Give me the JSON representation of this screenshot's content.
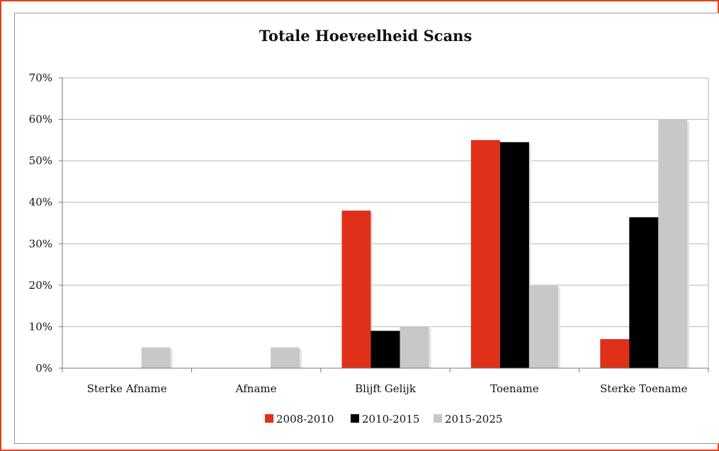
{
  "chart_data": {
    "type": "bar",
    "title": "Totale Hoeveelheid Scans",
    "xlabel": "",
    "ylabel": "",
    "categories": [
      "Sterke Afname",
      "Afname",
      "Blijft Gelijk",
      "Toename",
      "Sterke Toename"
    ],
    "series": [
      {
        "name": "2008-2010",
        "color": "#e0301a",
        "values": [
          0,
          0,
          38,
          55,
          7
        ]
      },
      {
        "name": "2010-2015",
        "color": "#000000",
        "values": [
          0,
          0,
          9,
          54.5,
          36.4
        ]
      },
      {
        "name": "2015-2025",
        "color": "#c8c8c8",
        "values": [
          5,
          5,
          10,
          20,
          60
        ]
      }
    ],
    "ylim": [
      0,
      70
    ],
    "yticks": [
      "0%",
      "10%",
      "20%",
      "30%",
      "40%",
      "50%",
      "60%",
      "70%"
    ],
    "grid": true,
    "legend_position": "bottom"
  },
  "colors": {
    "frame_border": "#e0431c",
    "grid": "#b5b5b5"
  }
}
